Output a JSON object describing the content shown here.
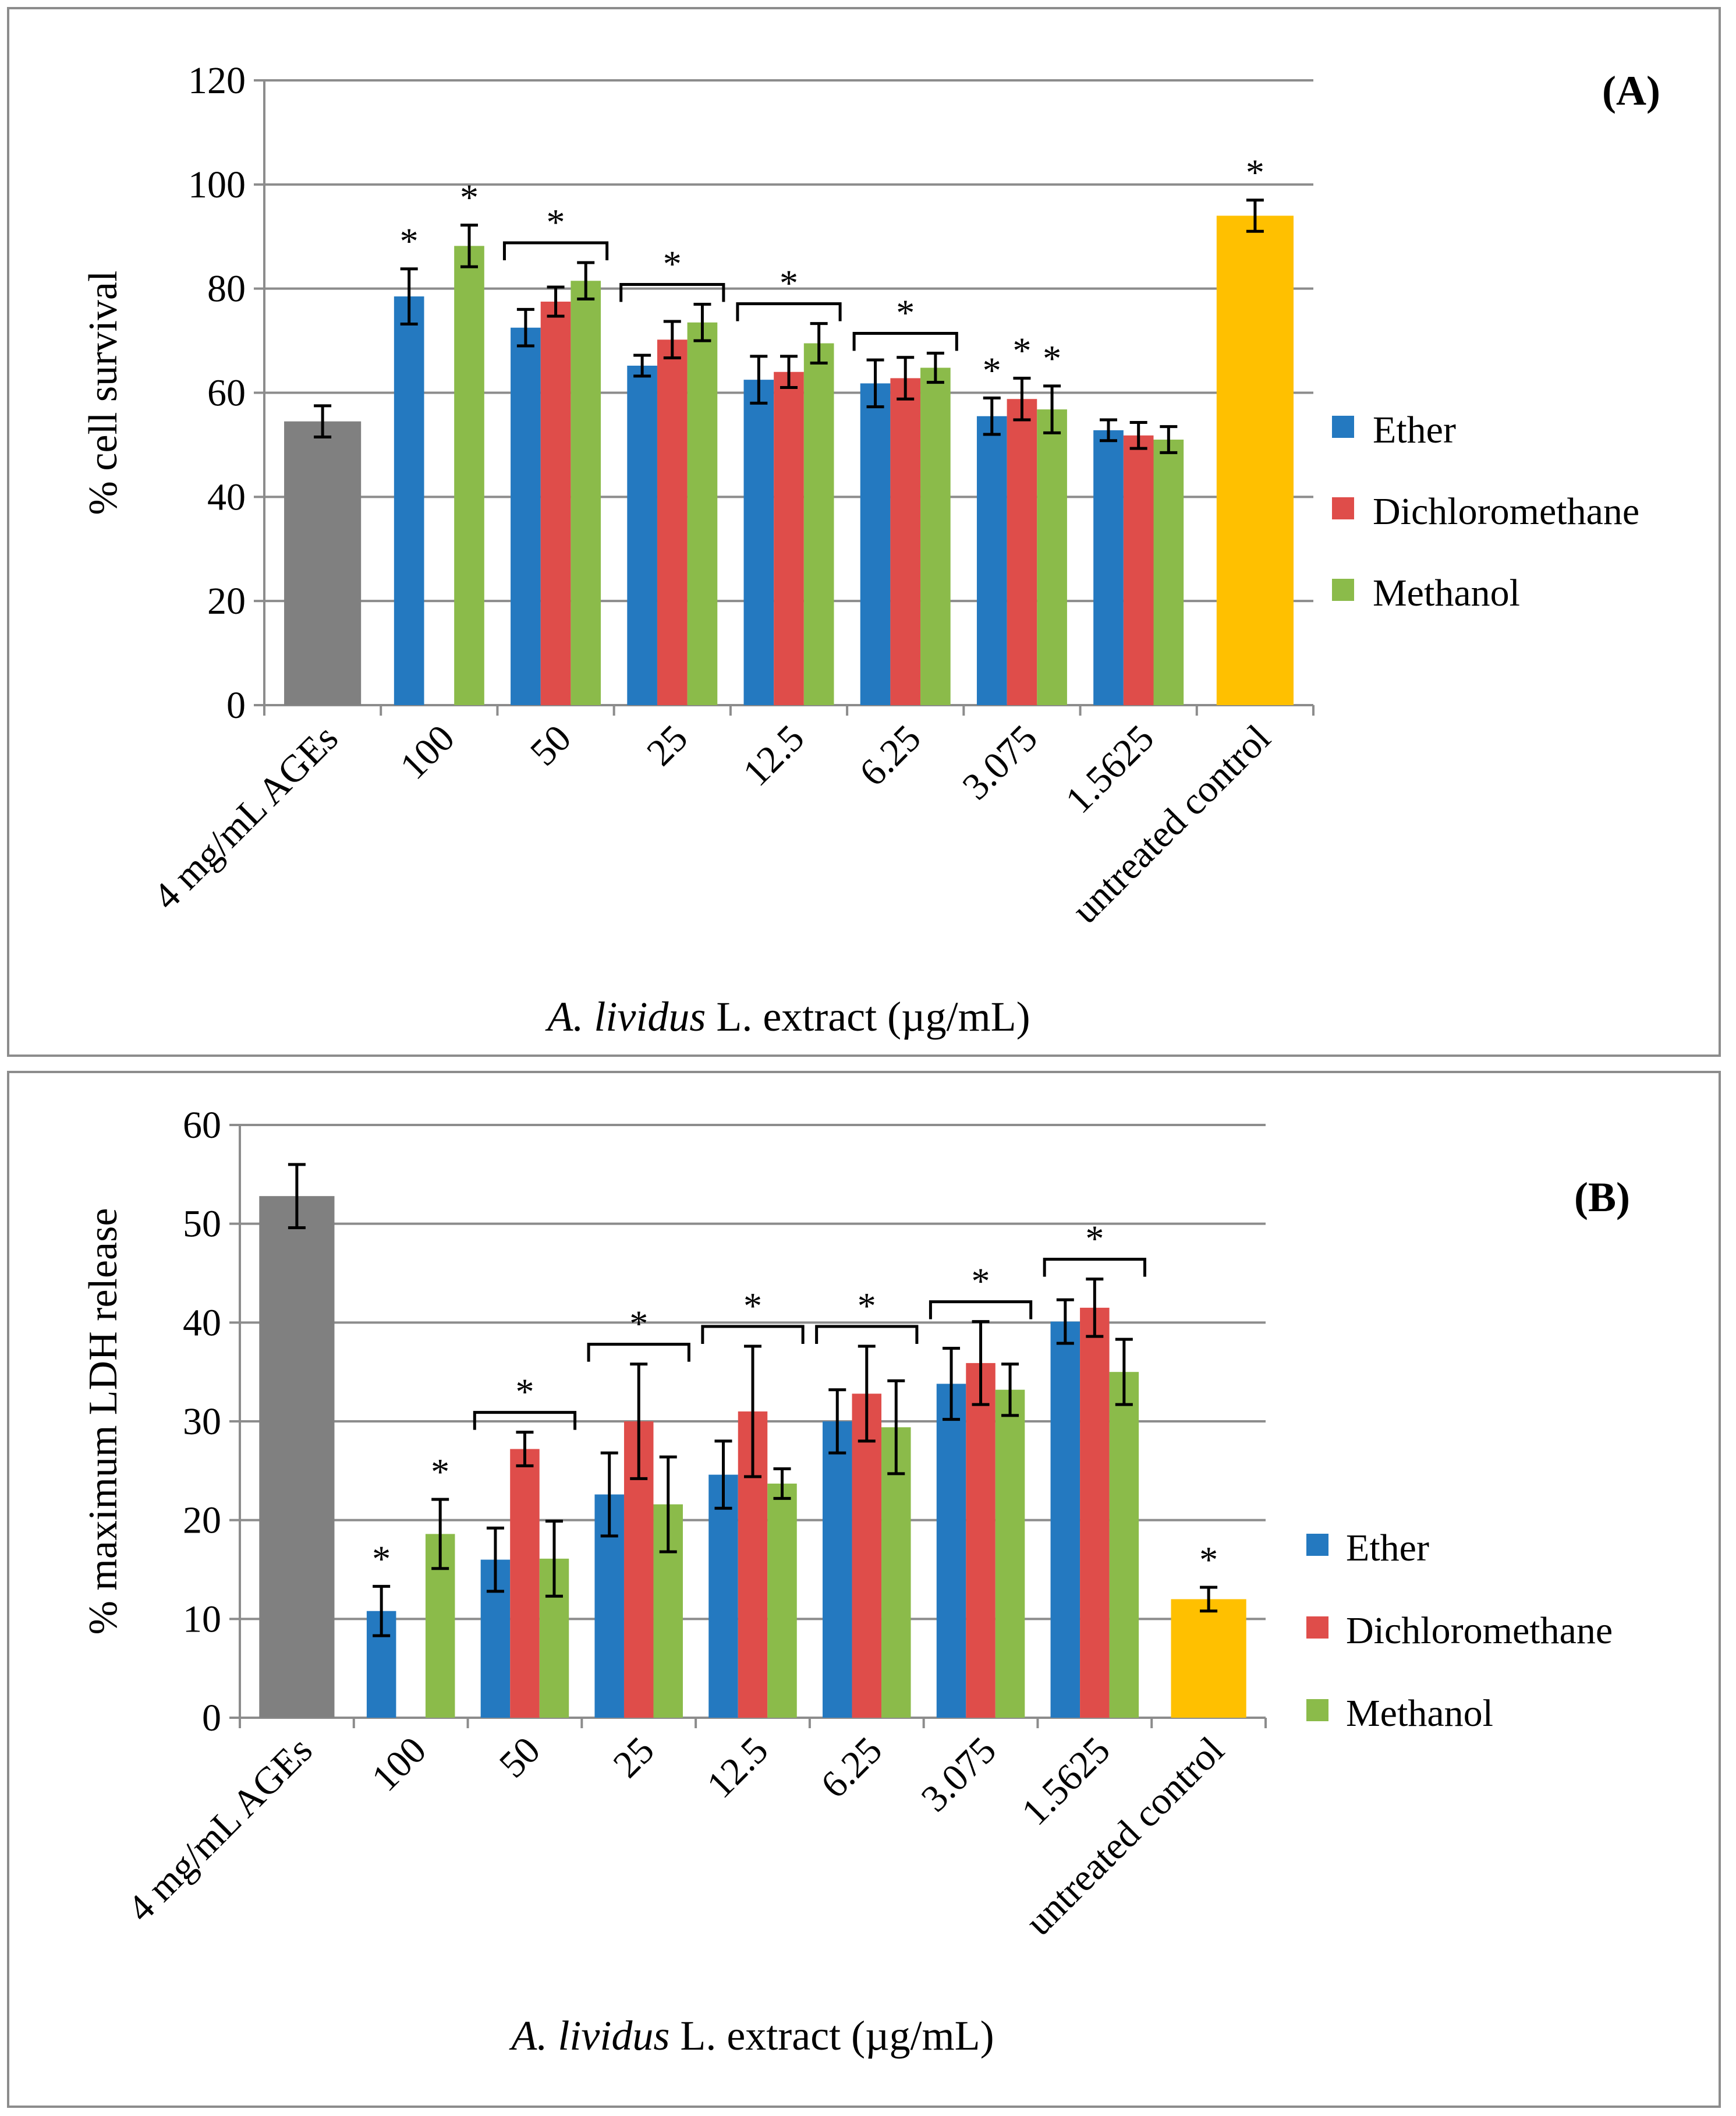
{
  "colors": {
    "ether": "#2479c0",
    "dichloromethane": "#df4d4a",
    "methanol": "#8bbb4a",
    "ages": "#808080",
    "control": "#ffc000",
    "grid": "#8c8c8c"
  },
  "chart_data": [
    {
      "type": "bar",
      "panel_label": "(A)",
      "ylabel": "% cell survival",
      "xlabel_italic": "A. lividus",
      "xlabel_rest": " L. extract (µg/mL)",
      "ylim": [
        0,
        120
      ],
      "ytick_step": 20,
      "yticks": [
        "0",
        "20",
        "40",
        "60",
        "80",
        "100",
        "120"
      ],
      "categories": [
        "4 mg/mL AGEs",
        "100",
        "50",
        "25",
        "12.5",
        "6.25",
        "3.075",
        "1.5625",
        "untreated control"
      ],
      "legend": [
        "Ether",
        "Dichloromethane",
        "Methanol"
      ],
      "reference_bars": [
        {
          "name": "4 mg/mL AGEs",
          "category_index": 0,
          "value": 54.5,
          "error": 3,
          "star": false
        },
        {
          "name": "untreated control",
          "category_index": 8,
          "value": 94,
          "error": 3,
          "star": true
        }
      ],
      "series": [
        {
          "name": "Ether",
          "values": [
            null,
            78.5,
            72.5,
            65.2,
            62.5,
            61.8,
            55.5,
            52.8,
            null
          ],
          "errors": [
            null,
            5.3,
            3.5,
            2,
            4.5,
            4.5,
            3.5,
            2,
            null
          ]
        },
        {
          "name": "Dichloromethane",
          "values": [
            null,
            null,
            77.5,
            70.2,
            64,
            62.8,
            58.8,
            51.8,
            null
          ],
          "errors": [
            null,
            null,
            2.8,
            3.5,
            3,
            4,
            4,
            2.5,
            null
          ]
        },
        {
          "name": "Methanol",
          "values": [
            null,
            88.2,
            81.5,
            73.5,
            69.5,
            64.8,
            56.8,
            51,
            null
          ],
          "errors": [
            null,
            4,
            3.5,
            3.5,
            3.8,
            2.8,
            4.5,
            2.5,
            null
          ]
        }
      ],
      "significance": [
        {
          "category_index": 1,
          "style": "single",
          "label": "*"
        },
        {
          "category_index": 2,
          "style": "bracket",
          "label": "*"
        },
        {
          "category_index": 3,
          "style": "bracket",
          "label": "*"
        },
        {
          "category_index": 4,
          "style": "bracket",
          "label": "*"
        },
        {
          "category_index": 5,
          "style": "bracket",
          "label": "*"
        },
        {
          "category_index": 6,
          "style": "single",
          "label": "*"
        }
      ]
    },
    {
      "type": "bar",
      "panel_label": "(B)",
      "ylabel": "% maximum LDH release",
      "xlabel_italic": "A. lividus",
      "xlabel_rest": " L. extract (µg/mL)",
      "ylim": [
        0,
        60
      ],
      "ytick_step": 10,
      "yticks": [
        "0",
        "10",
        "20",
        "30",
        "40",
        "50",
        "60"
      ],
      "categories": [
        "4 mg/mL AGEs",
        "100",
        "50",
        "25",
        "12.5",
        "6.25",
        "3.075",
        "1.5625",
        "untreated control"
      ],
      "legend": [
        "Ether",
        "Dichloromethane",
        "Methanol"
      ],
      "reference_bars": [
        {
          "name": "4 mg/mL AGEs",
          "category_index": 0,
          "value": 52.8,
          "error": 3.2,
          "star": false
        },
        {
          "name": "untreated control",
          "category_index": 8,
          "value": 12,
          "error": 1.2,
          "star": true
        }
      ],
      "series": [
        {
          "name": "Ether",
          "values": [
            null,
            10.8,
            16,
            22.6,
            24.6,
            30,
            33.8,
            40.1,
            null
          ],
          "errors": [
            null,
            2.5,
            3.2,
            4.2,
            3.4,
            3.2,
            3.6,
            2.2,
            null
          ]
        },
        {
          "name": "Dichloromethane",
          "values": [
            null,
            null,
            27.2,
            30,
            31,
            32.8,
            35.9,
            41.5,
            null
          ],
          "errors": [
            null,
            null,
            1.7,
            5.8,
            6.6,
            4.8,
            4.2,
            2.9,
            null
          ]
        },
        {
          "name": "Methanol",
          "values": [
            null,
            18.6,
            16.1,
            21.6,
            23.7,
            29.4,
            33.2,
            35,
            null
          ],
          "errors": [
            null,
            3.5,
            3.8,
            4.8,
            1.5,
            4.7,
            2.6,
            3.3,
            null
          ]
        }
      ],
      "significance": [
        {
          "category_index": 1,
          "style": "single",
          "label": "*"
        },
        {
          "category_index": 2,
          "style": "bracket",
          "label": "*"
        },
        {
          "category_index": 3,
          "style": "bracket",
          "label": "*"
        },
        {
          "category_index": 4,
          "style": "bracket",
          "label": "*"
        },
        {
          "category_index": 5,
          "style": "bracket",
          "label": "*"
        },
        {
          "category_index": 6,
          "style": "bracket",
          "label": "*"
        },
        {
          "category_index": 7,
          "style": "bracket",
          "label": "*"
        }
      ]
    }
  ]
}
